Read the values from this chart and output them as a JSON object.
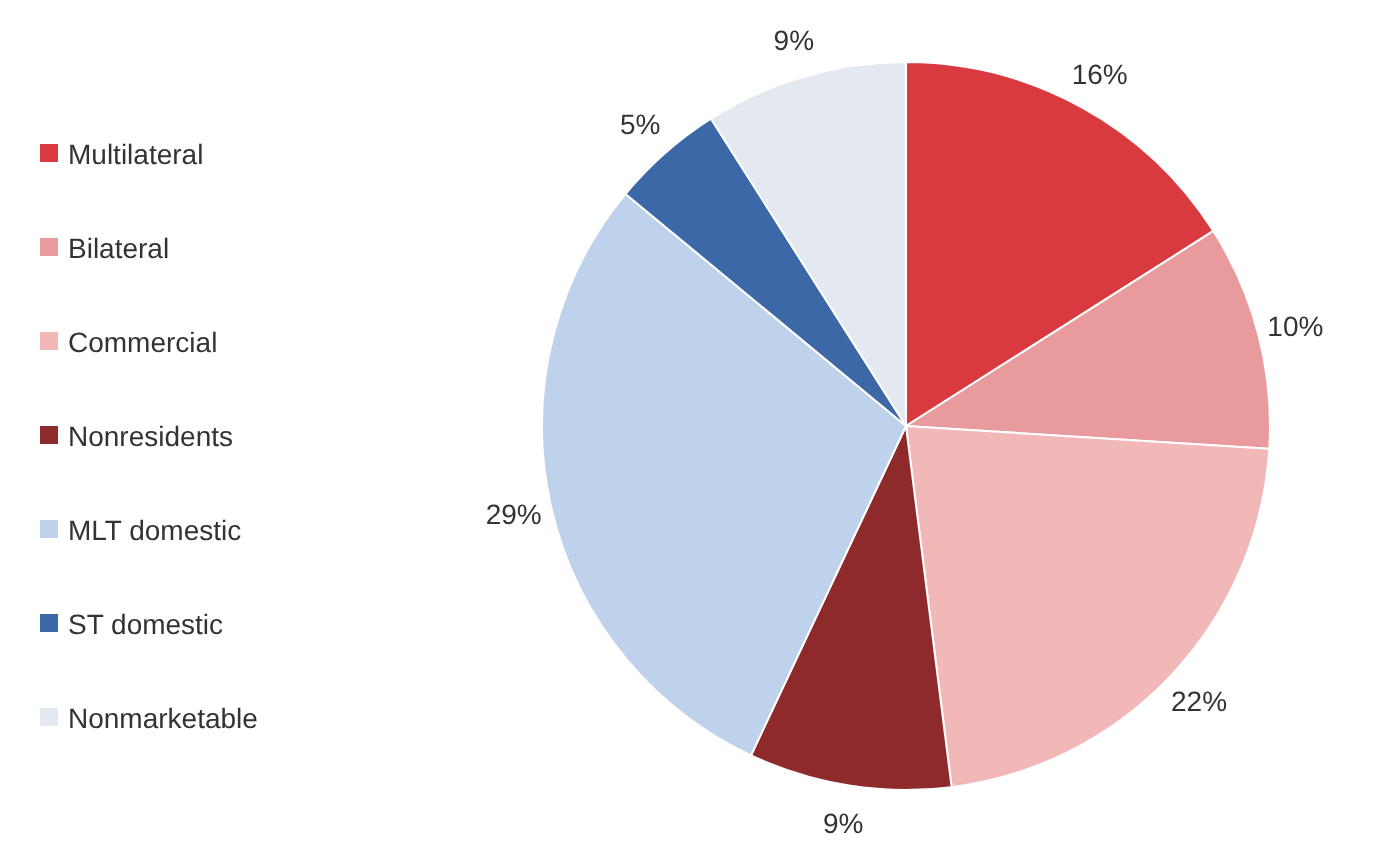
{
  "chart_data": {
    "type": "pie",
    "categories": [
      "Multilateral",
      "Bilateral",
      "Commercial",
      "Nonresidents",
      "MLT domestic",
      "ST domestic",
      "Nonmarketable"
    ],
    "values": [
      16,
      10,
      22,
      9,
      29,
      5,
      9
    ],
    "value_labels": [
      "16%",
      "10%",
      "22%",
      "9%",
      "29%",
      "5%",
      "9%"
    ],
    "colors": [
      "#d93a3f",
      "#e99a9c",
      "#f2b8b8",
      "#8e2a2c",
      "#bfd2ec",
      "#3d68a8",
      "#e4e8f0"
    ],
    "legend": "left"
  }
}
